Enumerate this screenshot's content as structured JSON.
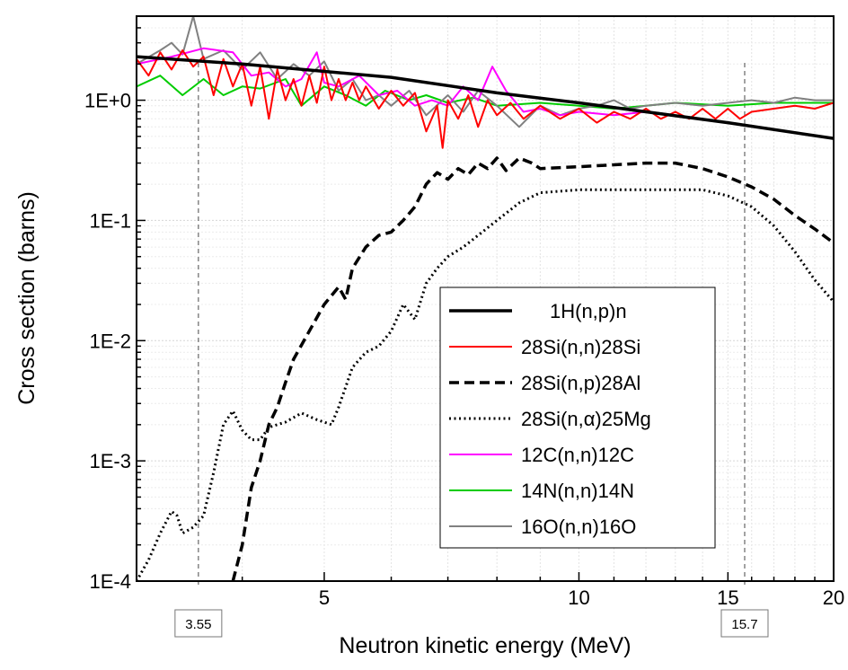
{
  "chart_data": {
    "type": "line",
    "xscale": "log",
    "yscale": "log",
    "xlabel": "Neutron kinetic energy (MeV)",
    "ylabel": "Cross section (barns)",
    "xlim": [
      3.0,
      20
    ],
    "ylim": [
      0.0001,
      5.0
    ],
    "xticks": [
      {
        "value": 5,
        "label": "5"
      },
      {
        "value": 10,
        "label": "10"
      },
      {
        "value": 15,
        "label": "15"
      },
      {
        "value": 20,
        "label": "20"
      }
    ],
    "yticks": [
      {
        "value": 0.0001,
        "label": "1E-4"
      },
      {
        "value": 0.001,
        "label": "1E-3"
      },
      {
        "value": 0.01,
        "label": "1E-2"
      },
      {
        "value": 0.1,
        "label": "1E-1"
      },
      {
        "value": 1,
        "label": "1E+0"
      }
    ],
    "grid": true,
    "legend_position": "bottom-right",
    "annotations": [
      {
        "x": 3.55,
        "label": "3.55"
      },
      {
        "x": 15.7,
        "label": "15.7"
      }
    ],
    "series": [
      {
        "name": "1H(n,p)n",
        "color": "#000000",
        "style": "solid-thick",
        "points": [
          [
            3.0,
            2.3
          ],
          [
            4.0,
            2.0
          ],
          [
            6.0,
            1.55
          ],
          [
            8.0,
            1.15
          ],
          [
            10.0,
            0.95
          ],
          [
            12.0,
            0.8
          ],
          [
            15.0,
            0.65
          ],
          [
            20.0,
            0.48
          ]
        ]
      },
      {
        "name": "28Si(n,n)28Si",
        "color": "#ff0000",
        "style": "solid",
        "points": [
          [
            3.0,
            2.2
          ],
          [
            3.1,
            1.6
          ],
          [
            3.2,
            2.5
          ],
          [
            3.3,
            1.8
          ],
          [
            3.4,
            2.6
          ],
          [
            3.5,
            1.9
          ],
          [
            3.6,
            2.3
          ],
          [
            3.7,
            1.1
          ],
          [
            3.8,
            2.2
          ],
          [
            3.9,
            1.3
          ],
          [
            4.0,
            2.0
          ],
          [
            4.1,
            0.9
          ],
          [
            4.2,
            1.9
          ],
          [
            4.3,
            0.7
          ],
          [
            4.4,
            1.8
          ],
          [
            4.5,
            1.0
          ],
          [
            4.6,
            1.5
          ],
          [
            4.7,
            0.9
          ],
          [
            4.8,
            1.6
          ],
          [
            4.9,
            0.95
          ],
          [
            5.0,
            1.9
          ],
          [
            5.1,
            1.0
          ],
          [
            5.2,
            1.5
          ],
          [
            5.3,
            1.0
          ],
          [
            5.4,
            1.4
          ],
          [
            5.5,
            1.0
          ],
          [
            5.6,
            1.3
          ],
          [
            5.8,
            0.85
          ],
          [
            6.0,
            1.2
          ],
          [
            6.2,
            0.9
          ],
          [
            6.4,
            1.15
          ],
          [
            6.6,
            0.55
          ],
          [
            6.8,
            0.9
          ],
          [
            6.9,
            0.4
          ],
          [
            7.0,
            1.0
          ],
          [
            7.2,
            0.7
          ],
          [
            7.4,
            1.1
          ],
          [
            7.6,
            0.6
          ],
          [
            7.8,
            1.0
          ],
          [
            8.0,
            0.75
          ],
          [
            8.3,
            0.95
          ],
          [
            8.6,
            0.7
          ],
          [
            9.0,
            0.9
          ],
          [
            9.5,
            0.7
          ],
          [
            10.0,
            0.85
          ],
          [
            10.5,
            0.65
          ],
          [
            11.0,
            0.8
          ],
          [
            11.5,
            0.7
          ],
          [
            12.0,
            0.85
          ],
          [
            12.5,
            0.7
          ],
          [
            13.0,
            0.8
          ],
          [
            13.5,
            0.7
          ],
          [
            14.0,
            0.85
          ],
          [
            14.5,
            0.7
          ],
          [
            15.0,
            0.85
          ],
          [
            15.5,
            0.7
          ],
          [
            16.0,
            0.8
          ],
          [
            17.0,
            0.85
          ],
          [
            18.0,
            0.9
          ],
          [
            19.0,
            0.85
          ],
          [
            20.0,
            0.95
          ]
        ]
      },
      {
        "name": "28Si(n,p)28Al",
        "color": "#000000",
        "style": "dashed",
        "points": [
          [
            3.9,
            0.0001
          ],
          [
            4.0,
            0.0002
          ],
          [
            4.1,
            0.0006
          ],
          [
            4.2,
            0.001
          ],
          [
            4.3,
            0.002
          ],
          [
            4.4,
            0.0028
          ],
          [
            4.5,
            0.0045
          ],
          [
            4.6,
            0.007
          ],
          [
            4.8,
            0.012
          ],
          [
            5.0,
            0.02
          ],
          [
            5.2,
            0.028
          ],
          [
            5.3,
            0.022
          ],
          [
            5.4,
            0.04
          ],
          [
            5.6,
            0.06
          ],
          [
            5.8,
            0.075
          ],
          [
            6.0,
            0.08
          ],
          [
            6.2,
            0.1
          ],
          [
            6.4,
            0.13
          ],
          [
            6.6,
            0.2
          ],
          [
            6.8,
            0.25
          ],
          [
            7.0,
            0.22
          ],
          [
            7.2,
            0.27
          ],
          [
            7.4,
            0.24
          ],
          [
            7.6,
            0.3
          ],
          [
            7.8,
            0.27
          ],
          [
            8.0,
            0.33
          ],
          [
            8.2,
            0.26
          ],
          [
            8.5,
            0.33
          ],
          [
            8.8,
            0.3
          ],
          [
            9.0,
            0.27
          ],
          [
            10.0,
            0.28
          ],
          [
            11.0,
            0.29
          ],
          [
            12.0,
            0.3
          ],
          [
            13.0,
            0.3
          ],
          [
            14.0,
            0.27
          ],
          [
            15.0,
            0.23
          ],
          [
            16.0,
            0.19
          ],
          [
            17.0,
            0.15
          ],
          [
            18.0,
            0.11
          ],
          [
            19.0,
            0.085
          ],
          [
            20.0,
            0.065
          ]
        ]
      },
      {
        "name": "28Si(n,α)25Mg",
        "color": "#000000",
        "style": "dotted",
        "points": [
          [
            3.0,
            0.0001
          ],
          [
            3.1,
            0.00015
          ],
          [
            3.2,
            0.00025
          ],
          [
            3.3,
            0.00038
          ],
          [
            3.35,
            0.00035
          ],
          [
            3.4,
            0.00025
          ],
          [
            3.5,
            0.00028
          ],
          [
            3.6,
            0.00035
          ],
          [
            3.7,
            0.0008
          ],
          [
            3.8,
            0.002
          ],
          [
            3.9,
            0.0026
          ],
          [
            4.0,
            0.0018
          ],
          [
            4.1,
            0.0015
          ],
          [
            4.2,
            0.0015
          ],
          [
            4.3,
            0.0019
          ],
          [
            4.4,
            0.002
          ],
          [
            4.5,
            0.0021
          ],
          [
            4.7,
            0.0025
          ],
          [
            4.9,
            0.0022
          ],
          [
            5.1,
            0.002
          ],
          [
            5.2,
            0.0028
          ],
          [
            5.4,
            0.006
          ],
          [
            5.6,
            0.008
          ],
          [
            5.8,
            0.009
          ],
          [
            6.0,
            0.012
          ],
          [
            6.2,
            0.02
          ],
          [
            6.4,
            0.015
          ],
          [
            6.6,
            0.03
          ],
          [
            6.8,
            0.04
          ],
          [
            7.0,
            0.05
          ],
          [
            7.3,
            0.06
          ],
          [
            7.6,
            0.075
          ],
          [
            8.0,
            0.1
          ],
          [
            8.5,
            0.14
          ],
          [
            9.0,
            0.17
          ],
          [
            10.0,
            0.18
          ],
          [
            12.0,
            0.18
          ],
          [
            14.0,
            0.18
          ],
          [
            15.0,
            0.16
          ],
          [
            16.0,
            0.13
          ],
          [
            17.0,
            0.09
          ],
          [
            18.0,
            0.055
          ],
          [
            19.0,
            0.032
          ],
          [
            20.0,
            0.021
          ]
        ]
      },
      {
        "name": "12C(n,n)12C",
        "color": "#ff00ff",
        "style": "solid",
        "points": [
          [
            3.0,
            2.0
          ],
          [
            3.3,
            2.3
          ],
          [
            3.6,
            2.7
          ],
          [
            3.9,
            2.5
          ],
          [
            4.1,
            1.6
          ],
          [
            4.3,
            1.7
          ],
          [
            4.5,
            1.3
          ],
          [
            4.7,
            1.5
          ],
          [
            4.9,
            2.5
          ],
          [
            5.0,
            1.4
          ],
          [
            5.2,
            1.3
          ],
          [
            5.5,
            1.6
          ],
          [
            5.8,
            1.1
          ],
          [
            6.1,
            1.2
          ],
          [
            6.4,
            0.9
          ],
          [
            6.7,
            1.0
          ],
          [
            7.0,
            0.9
          ],
          [
            7.3,
            1.3
          ],
          [
            7.6,
            1.0
          ],
          [
            7.9,
            1.9
          ],
          [
            8.2,
            1.2
          ],
          [
            8.6,
            0.8
          ],
          [
            9.0,
            0.85
          ],
          [
            9.5,
            0.75
          ],
          [
            10.0,
            0.8
          ],
          [
            11.0,
            0.75
          ],
          [
            12.0,
            0.8
          ]
        ]
      },
      {
        "name": "14N(n,n)14N",
        "color": "#00cc00",
        "style": "solid",
        "points": [
          [
            3.0,
            1.3
          ],
          [
            3.2,
            1.6
          ],
          [
            3.4,
            1.1
          ],
          [
            3.6,
            1.5
          ],
          [
            3.8,
            1.1
          ],
          [
            4.0,
            1.3
          ],
          [
            4.2,
            1.25
          ],
          [
            4.5,
            1.5
          ],
          [
            4.7,
            0.9
          ],
          [
            5.0,
            1.3
          ],
          [
            5.3,
            1.1
          ],
          [
            5.6,
            0.9
          ],
          [
            5.9,
            1.2
          ],
          [
            6.3,
            1.0
          ],
          [
            6.6,
            1.1
          ],
          [
            7.0,
            0.95
          ],
          [
            7.5,
            1.05
          ],
          [
            8.0,
            0.9
          ],
          [
            9.0,
            0.95
          ],
          [
            10.0,
            0.9
          ],
          [
            11.0,
            0.85
          ],
          [
            12.0,
            0.9
          ],
          [
            13.0,
            0.95
          ],
          [
            15.0,
            0.9
          ],
          [
            17.0,
            0.95
          ],
          [
            20.0,
            0.95
          ]
        ]
      },
      {
        "name": "16O(n,n)16O",
        "color": "#808080",
        "style": "solid",
        "points": [
          [
            3.0,
            2.0
          ],
          [
            3.2,
            2.6
          ],
          [
            3.3,
            3.0
          ],
          [
            3.4,
            2.4
          ],
          [
            3.5,
            5.0
          ],
          [
            3.6,
            2.2
          ],
          [
            3.8,
            2.6
          ],
          [
            4.0,
            1.8
          ],
          [
            4.2,
            2.5
          ],
          [
            4.4,
            1.5
          ],
          [
            4.6,
            2.0
          ],
          [
            4.8,
            1.6
          ],
          [
            5.0,
            2.1
          ],
          [
            5.2,
            1.2
          ],
          [
            5.4,
            1.5
          ],
          [
            5.6,
            1.0
          ],
          [
            5.8,
            1.1
          ],
          [
            6.0,
            0.9
          ],
          [
            6.3,
            1.2
          ],
          [
            6.6,
            0.75
          ],
          [
            7.0,
            1.1
          ],
          [
            7.3,
            0.8
          ],
          [
            7.6,
            1.2
          ],
          [
            8.0,
            0.9
          ],
          [
            8.5,
            0.6
          ],
          [
            9.0,
            0.9
          ],
          [
            9.5,
            0.75
          ],
          [
            10.0,
            0.85
          ],
          [
            10.5,
            0.9
          ],
          [
            11.0,
            1.0
          ],
          [
            11.5,
            0.85
          ],
          [
            12.0,
            0.9
          ],
          [
            13.0,
            0.95
          ],
          [
            14.0,
            0.9
          ],
          [
            15.0,
            0.95
          ],
          [
            16.0,
            1.0
          ],
          [
            17.0,
            0.95
          ],
          [
            18.0,
            1.05
          ],
          [
            19.0,
            1.0
          ],
          [
            20.0,
            1.0
          ]
        ]
      }
    ]
  }
}
